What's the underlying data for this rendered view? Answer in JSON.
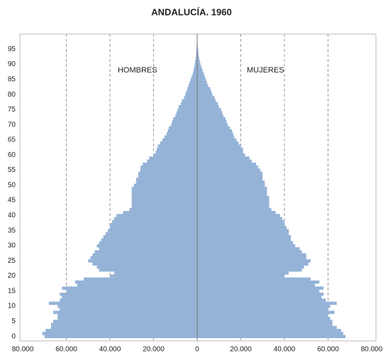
{
  "chart_data": {
    "type": "pyramid",
    "title": "ANDALUCÍA. 1960",
    "x": [
      0,
      1,
      2,
      3,
      4,
      5,
      6,
      7,
      8,
      9,
      10,
      11,
      12,
      13,
      14,
      15,
      16,
      17,
      18,
      19,
      20,
      21,
      22,
      23,
      24,
      25,
      26,
      27,
      28,
      29,
      30,
      31,
      32,
      33,
      34,
      35,
      36,
      37,
      38,
      39,
      40,
      41,
      42,
      43,
      44,
      45,
      46,
      47,
      48,
      49,
      50,
      51,
      52,
      53,
      54,
      55,
      56,
      57,
      58,
      59,
      60,
      61,
      62,
      63,
      64,
      65,
      66,
      67,
      68,
      69,
      70,
      71,
      72,
      73,
      74,
      75,
      76,
      77,
      78,
      79,
      80,
      81,
      82,
      83,
      84,
      85,
      86,
      87,
      88,
      89,
      90,
      91,
      92,
      93,
      94,
      95,
      96
    ],
    "series": [
      {
        "name": "HOMBRES",
        "color": "#95b3d7",
        "values": [
          -70000,
          -71000,
          -69500,
          -67000,
          -67000,
          -66000,
          -64000,
          -64000,
          -66000,
          -63000,
          -64000,
          -68000,
          -63000,
          -62000,
          -63000,
          -60000,
          -62000,
          -55000,
          -56000,
          -52000,
          -40000,
          -38000,
          -45000,
          -46000,
          -48000,
          -50000,
          -49000,
          -48000,
          -47000,
          -45000,
          -46000,
          -45000,
          -44000,
          -43000,
          -42000,
          -41000,
          -40000,
          -40000,
          -39000,
          -38000,
          -37000,
          -34000,
          -31000,
          -30000,
          -30000,
          -30000,
          -30000,
          -30000,
          -30000,
          -30000,
          -29000,
          -28000,
          -28000,
          -27000,
          -27000,
          -26000,
          -26000,
          -25000,
          -23000,
          -22000,
          -20000,
          -19000,
          -18500,
          -18000,
          -17000,
          -16000,
          -15000,
          -14000,
          -13500,
          -13000,
          -12000,
          -11500,
          -11000,
          -10000,
          -9500,
          -9000,
          -8500,
          -7500,
          -7000,
          -6000,
          -5500,
          -5000,
          -4500,
          -4000,
          -3500,
          -3000,
          -2500,
          -2000,
          -1700,
          -1400,
          -1100,
          -900,
          -700,
          -500,
          -400,
          -300,
          -200
        ]
      },
      {
        "name": "MUJERES",
        "color": "#95b3d7",
        "values": [
          68000,
          67000,
          66000,
          64000,
          62000,
          62000,
          61000,
          60000,
          63000,
          60000,
          61000,
          64000,
          59000,
          57000,
          58000,
          56000,
          58000,
          54000,
          56000,
          52000,
          40000,
          42000,
          48000,
          49000,
          51000,
          52000,
          50000,
          50000,
          48000,
          47000,
          45000,
          44000,
          43000,
          43000,
          42000,
          42000,
          41000,
          40000,
          40000,
          39000,
          38000,
          36000,
          34000,
          33000,
          33000,
          33000,
          33000,
          32000,
          32000,
          32000,
          31000,
          31000,
          30000,
          30000,
          30000,
          29000,
          28000,
          27000,
          25000,
          24000,
          22000,
          21000,
          21000,
          20000,
          19000,
          18000,
          17000,
          16500,
          16000,
          15000,
          14000,
          13500,
          13000,
          12000,
          11500,
          11000,
          10000,
          9500,
          8500,
          8000,
          7000,
          6500,
          6000,
          5000,
          4500,
          4000,
          3500,
          3000,
          2500,
          2000,
          1500,
          1200,
          900,
          700,
          500,
          400,
          300
        ]
      }
    ],
    "xlim": [
      -80000,
      80000
    ],
    "xticks": [
      {
        "value": -80000,
        "label": "80.000"
      },
      {
        "value": -60000,
        "label": "60.000"
      },
      {
        "value": -40000,
        "label": "40.000"
      },
      {
        "value": -20000,
        "label": "20.000"
      },
      0,
      {
        "value": 20000,
        "label": "20.000"
      },
      {
        "value": 40000,
        "label": "40.000"
      },
      {
        "value": 60000,
        "label": "60.000"
      },
      {
        "value": 80000,
        "label": "80.000"
      }
    ],
    "ylim": [
      -1.5,
      100
    ],
    "yticks": [
      0,
      5,
      10,
      15,
      20,
      25,
      30,
      35,
      40,
      45,
      50,
      55,
      60,
      65,
      70,
      75,
      80,
      85,
      90,
      95
    ],
    "grid": true
  }
}
